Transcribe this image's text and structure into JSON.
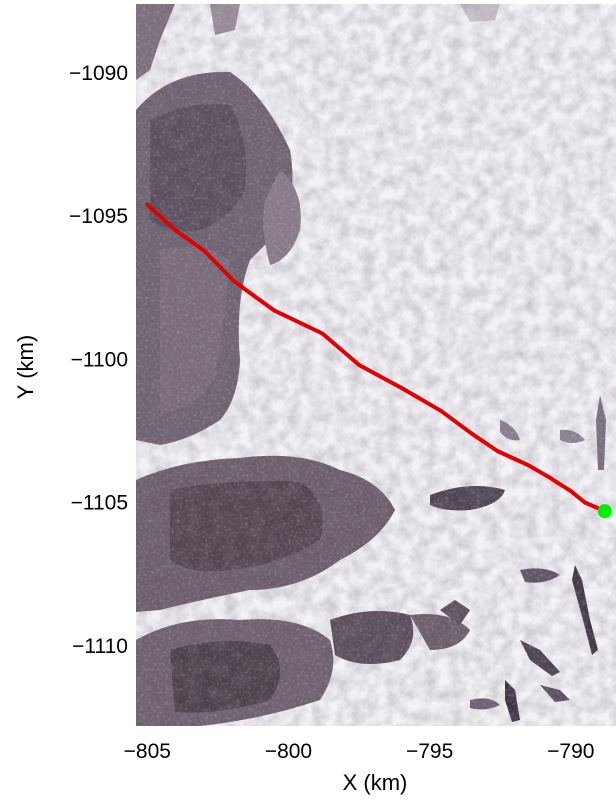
{
  "chart_data": {
    "type": "line",
    "title": "",
    "xlabel": "X (km)",
    "ylabel": "Y (km)",
    "xlim": [
      -805.4,
      -788.4
    ],
    "ylim": [
      -1112.8,
      -1087.6
    ],
    "xticks": [
      -805,
      -800,
      -795,
      -790
    ],
    "xtick_labels": [
      "−805",
      "−800",
      "−795",
      "−790"
    ],
    "yticks": [
      -1090,
      -1095,
      -1100,
      -1105,
      -1110
    ],
    "ytick_labels": [
      "−1090",
      "−1095",
      "−1100",
      "−1105",
      "−1110"
    ],
    "grid": false,
    "background": "satellite-image",
    "series": [
      {
        "color": "#e00000",
        "x": [
          -805.0,
          -804.0,
          -803.0,
          -801.9,
          -800.5,
          -798.8,
          -797.5,
          -796.0,
          -794.6,
          -793.5,
          -792.6,
          -791.5,
          -790.8,
          -790.0,
          -789.5,
          -788.8
        ],
        "y": [
          -1094.6,
          -1095.5,
          -1096.2,
          -1097.3,
          -1098.3,
          -1099.1,
          -1100.2,
          -1101.0,
          -1101.8,
          -1102.6,
          -1103.2,
          -1103.7,
          -1104.1,
          -1104.6,
          -1105.0,
          -1105.3
        ]
      }
    ],
    "markers": [
      {
        "x": -788.8,
        "y": -1105.3,
        "color": "#00ee00",
        "shape": "circle"
      }
    ]
  }
}
